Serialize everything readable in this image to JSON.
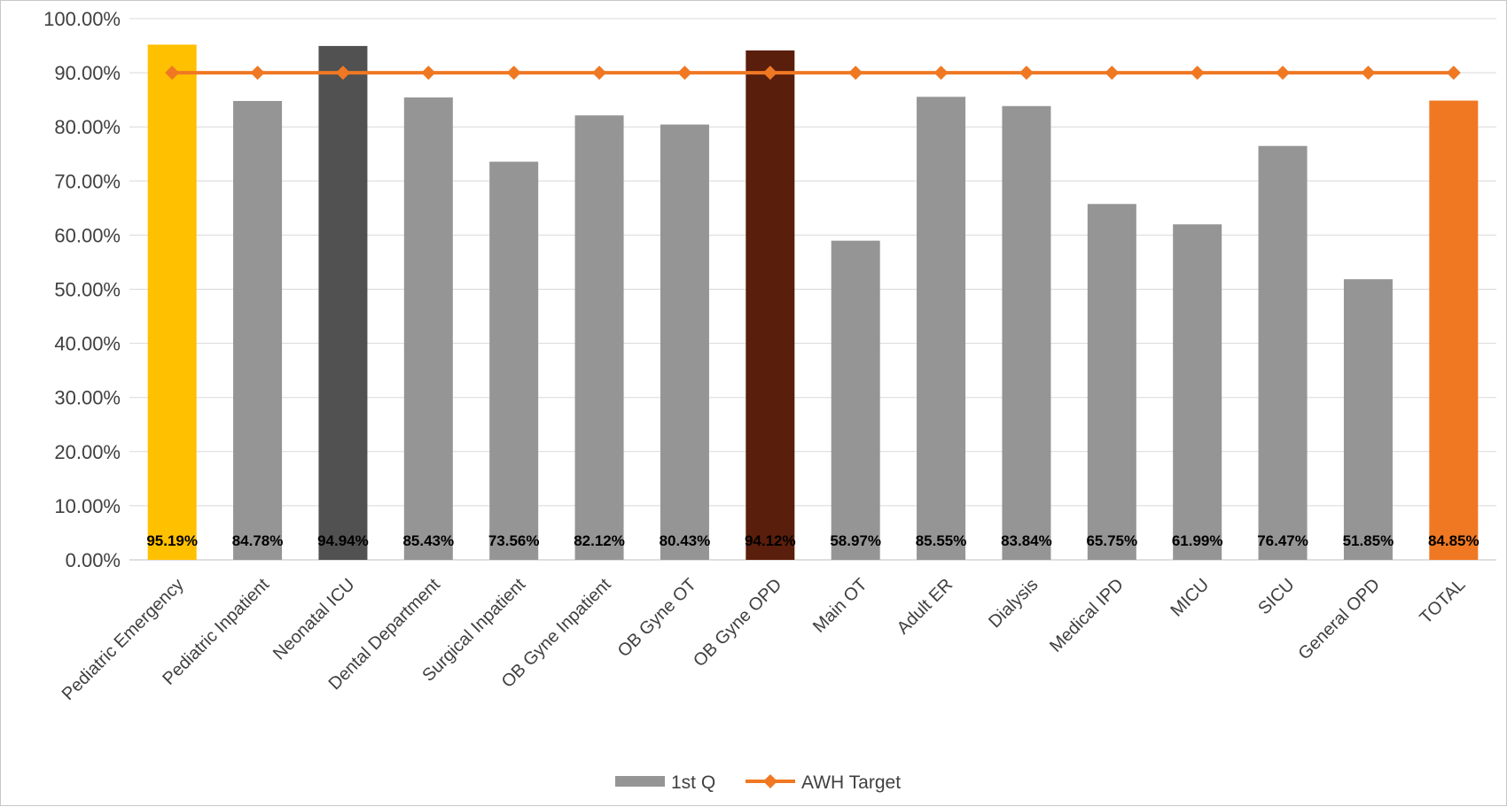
{
  "chart_data": {
    "type": "bar",
    "title": "",
    "xlabel": "",
    "ylabel": "",
    "ylim": [
      0,
      100
    ],
    "yticks": [
      "0.00%",
      "10.00%",
      "20.00%",
      "30.00%",
      "40.00%",
      "50.00%",
      "60.00%",
      "70.00%",
      "80.00%",
      "90.00%",
      "100.00%"
    ],
    "grid": "horizontal",
    "legend_position": "bottom",
    "categories": [
      "Pediatric Emergency",
      "Pediatric Inpatient",
      "Neonatal ICU",
      "Dental Department",
      "Surgical Inpatient",
      "OB Gyne Inpatient",
      "OB Gyne OT",
      "OB Gyne OPD",
      "Main OT",
      "Adult ER",
      "Dialysis",
      "Medical IPD",
      "MICU",
      "SICU",
      "General OPD",
      "TOTAL"
    ],
    "series": [
      {
        "name": "1st Q",
        "type": "bar",
        "color": "#959595",
        "values": [
          95.19,
          84.78,
          94.94,
          85.43,
          73.56,
          82.12,
          80.43,
          94.12,
          58.97,
          85.55,
          83.84,
          65.75,
          61.99,
          76.47,
          51.85,
          84.85
        ],
        "labels": [
          "95.19%",
          "84.78%",
          "94.94%",
          "85.43%",
          "73.56%",
          "82.12%",
          "80.43%",
          "94.12%",
          "58.97%",
          "85.55%",
          "83.84%",
          "65.75%",
          "61.99%",
          "76.47%",
          "51.85%",
          "84.85%"
        ],
        "bar_colors": [
          "#ffc000",
          "#959595",
          "#515151",
          "#959595",
          "#959595",
          "#959595",
          "#959595",
          "#5a1e0c",
          "#959595",
          "#959595",
          "#959595",
          "#959595",
          "#959595",
          "#959595",
          "#959595",
          "#f07823"
        ]
      },
      {
        "name": "AWH Target",
        "type": "line",
        "color": "#f07823",
        "marker": "diamond",
        "values": [
          90,
          90,
          90,
          90,
          90,
          90,
          90,
          90,
          90,
          90,
          90,
          90,
          90,
          90,
          90,
          90
        ]
      }
    ]
  }
}
